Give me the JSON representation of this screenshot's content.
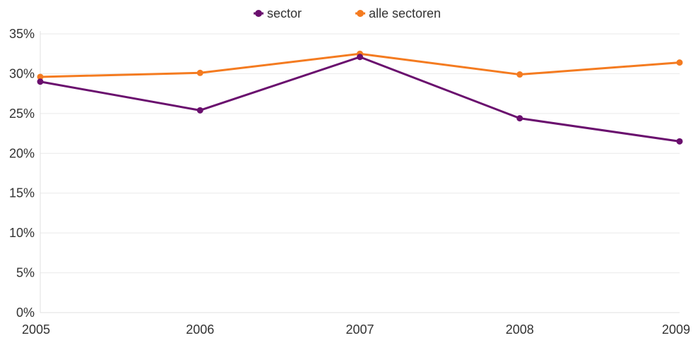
{
  "chart_data": {
    "type": "line",
    "title": "",
    "xlabel": "",
    "ylabel": "",
    "x": [
      "2005",
      "2006",
      "2007",
      "2008",
      "2009"
    ],
    "ylim": [
      0,
      35
    ],
    "yticks": [
      0,
      5,
      10,
      15,
      20,
      25,
      30,
      35
    ],
    "ytick_labels": [
      "0%",
      "5%",
      "10%",
      "15%",
      "20%",
      "25%",
      "30%",
      "35%"
    ],
    "grid": true,
    "legend_position": "top-center",
    "series": [
      {
        "name": "sector",
        "color": "#6a0f6e",
        "values": [
          29.0,
          25.4,
          32.1,
          24.4,
          21.5
        ]
      },
      {
        "name": "alle sectoren",
        "color": "#f47b20",
        "values": [
          29.6,
          30.1,
          32.5,
          29.9,
          31.4
        ]
      }
    ]
  }
}
